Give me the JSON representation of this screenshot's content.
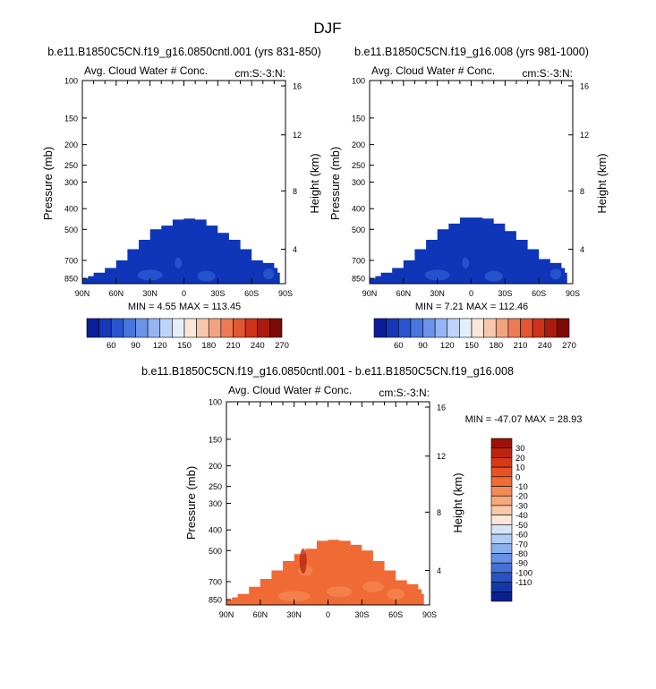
{
  "figure": {
    "title": "DJF"
  },
  "chart_data": [
    {
      "type": "heatmap",
      "id": "panel-1",
      "run_title": "b.e11.B1850C5CN.f19_g16.0850cntl.001 (yrs 831-850)",
      "left_title": "Avg. Cloud Water # Conc.",
      "right_title": "cm:S:-3:N:",
      "ylabel": "Pressure (mb)",
      "ylabel_right": "Height (km)",
      "yticks": [
        "100",
        "150",
        "200",
        "250",
        "300",
        "400",
        "500",
        "700",
        "850"
      ],
      "yticks_right": [
        "16",
        "12",
        "8",
        "4"
      ],
      "xticks": [
        "90N",
        "60N",
        "30N",
        "0",
        "30S",
        "60S",
        "90S"
      ],
      "stats": "MIN =   4.55   MAX = 113.45",
      "colorbar_labels": [
        "60",
        "90",
        "120",
        "150",
        "180",
        "210",
        "240",
        "270"
      ],
      "colorbar_colors": [
        "#0a1e9c",
        "#1637b8",
        "#2a55d0",
        "#4876e0",
        "#6c95ea",
        "#93b5f2",
        "#bdd3f8",
        "#e4eefb",
        "#fbe6da",
        "#f7c6ad",
        "#f3a27e",
        "#ec7c55",
        "#e25633",
        "#cf321a",
        "#a91b0e",
        "#7d0a05"
      ],
      "profile": [
        [
          -90,
          850
        ],
        [
          -85,
          830
        ],
        [
          -80,
          800
        ],
        [
          -70,
          760
        ],
        [
          -60,
          700
        ],
        [
          -50,
          620
        ],
        [
          -40,
          560
        ],
        [
          -30,
          500
        ],
        [
          -20,
          480
        ],
        [
          -10,
          450
        ],
        [
          0,
          445
        ],
        [
          10,
          450
        ],
        [
          20,
          480
        ],
        [
          30,
          520
        ],
        [
          40,
          560
        ],
        [
          50,
          620
        ],
        [
          60,
          700
        ],
        [
          70,
          720
        ],
        [
          80,
          760
        ],
        [
          83,
          800
        ],
        [
          85,
          850
        ]
      ],
      "fill": "#0f35b8"
    },
    {
      "type": "heatmap",
      "id": "panel-2",
      "run_title": "b.e11.B1850C5CN.f19_g16.008 (yrs 981-1000)",
      "left_title": "Avg. Cloud Water # Conc.",
      "right_title": "cm:S:-3:N:",
      "ylabel": "Pressure (mb)",
      "ylabel_right": "Height (km)",
      "yticks": [
        "100",
        "150",
        "200",
        "250",
        "300",
        "400",
        "500",
        "700",
        "850"
      ],
      "yticks_right": [
        "16",
        "12",
        "8",
        "4"
      ],
      "xticks": [
        "90N",
        "60N",
        "30N",
        "0",
        "30S",
        "60S",
        "90S"
      ],
      "stats": "MIN =   7.21   MAX = 112.46",
      "colorbar_labels": [
        "60",
        "90",
        "120",
        "150",
        "180",
        "210",
        "240",
        "270"
      ],
      "colorbar_colors": [
        "#0a1e9c",
        "#1637b8",
        "#2a55d0",
        "#4876e0",
        "#6c95ea",
        "#93b5f2",
        "#bdd3f8",
        "#e4eefb",
        "#fbe6da",
        "#f7c6ad",
        "#f3a27e",
        "#ec7c55",
        "#e25633",
        "#cf321a",
        "#a91b0e",
        "#7d0a05"
      ],
      "profile": [
        [
          -90,
          850
        ],
        [
          -85,
          830
        ],
        [
          -80,
          800
        ],
        [
          -70,
          760
        ],
        [
          -60,
          700
        ],
        [
          -50,
          620
        ],
        [
          -40,
          560
        ],
        [
          -30,
          500
        ],
        [
          -20,
          470
        ],
        [
          -10,
          440
        ],
        [
          0,
          440
        ],
        [
          10,
          445
        ],
        [
          20,
          470
        ],
        [
          30,
          510
        ],
        [
          40,
          560
        ],
        [
          50,
          620
        ],
        [
          60,
          690
        ],
        [
          70,
          720
        ],
        [
          80,
          760
        ],
        [
          83,
          800
        ],
        [
          85,
          850
        ]
      ],
      "fill": "#0f35b8"
    },
    {
      "type": "heatmap",
      "id": "panel-diff",
      "run_title": "b.e11.B1850C5CN.f19_g16.0850cntl.001 - b.e11.B1850C5CN.f19_g16.008",
      "left_title": "Avg. Cloud Water # Conc.",
      "right_title": "cm:S:-3:N:",
      "ylabel": "Pressure (mb)",
      "ylabel_right": "Height (km)",
      "yticks": [
        "100",
        "150",
        "200",
        "250",
        "300",
        "400",
        "500",
        "700",
        "850"
      ],
      "yticks_right": [
        "16",
        "12",
        "8",
        "4"
      ],
      "xticks": [
        "90N",
        "60N",
        "30N",
        "0",
        "30S",
        "60S",
        "90S"
      ],
      "stats": "MIN = -47.07   MAX =  28.93",
      "colorbar_labels": [
        "30",
        "20",
        "10",
        "0",
        "-10",
        "-20",
        "-30",
        "-40",
        "-50",
        "-60",
        "-70",
        "-80",
        "-90",
        "-100",
        "-110"
      ],
      "colorbar_colors": [
        "#9c1208",
        "#be2410",
        "#d63a18",
        "#e65424",
        "#f06c34",
        "#f48a56",
        "#f6a87c",
        "#f9c8a8",
        "#fbe5d6",
        "#d6e4f8",
        "#b2cdf4",
        "#8cb0ee",
        "#6890e4",
        "#4470d8",
        "#2a52c4",
        "#1637a8",
        "#0a2090"
      ],
      "profile": [
        [
          -90,
          850
        ],
        [
          -85,
          830
        ],
        [
          -80,
          800
        ],
        [
          -70,
          740
        ],
        [
          -60,
          680
        ],
        [
          -50,
          620
        ],
        [
          -40,
          560
        ],
        [
          -30,
          520
        ],
        [
          -20,
          490
        ],
        [
          -10,
          450
        ],
        [
          0,
          445
        ],
        [
          10,
          450
        ],
        [
          20,
          470
        ],
        [
          30,
          500
        ],
        [
          40,
          560
        ],
        [
          50,
          620
        ],
        [
          60,
          690
        ],
        [
          70,
          720
        ],
        [
          80,
          760
        ],
        [
          83,
          800
        ],
        [
          85,
          850
        ]
      ],
      "fill": "#f06a35"
    }
  ]
}
